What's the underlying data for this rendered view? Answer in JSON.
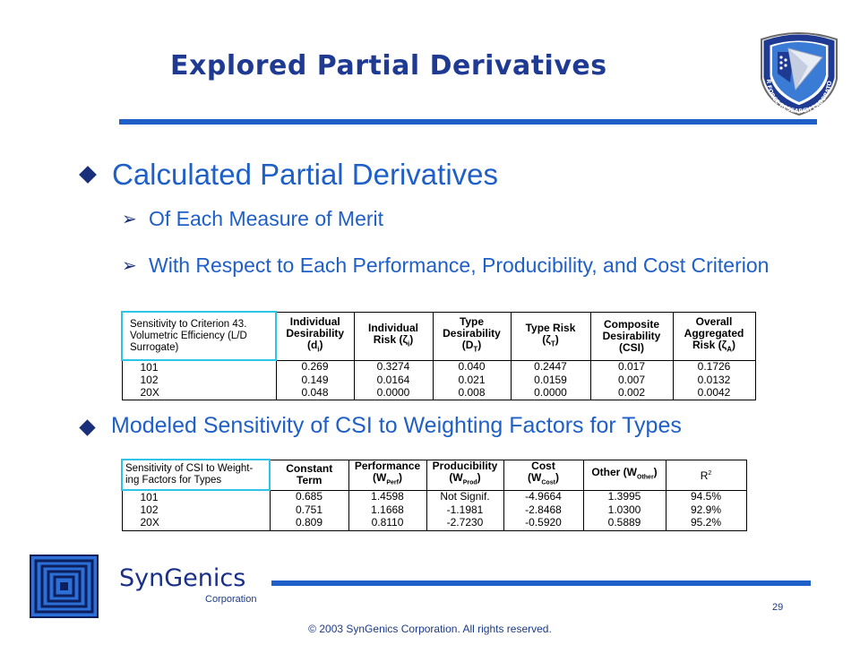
{
  "slide": {
    "title": "Explored Partial Derivatives",
    "bullet1": "Calculated Partial Derivatives",
    "sub1": "Of Each Measure of Merit",
    "sub2": "With Respect to Each Performance, Producibility, and Cost Criterion",
    "bullet2": "Modeled Sensitivity of CSI to Weighting Factors for Types"
  },
  "table1": {
    "corner": [
      "Sensitivity to Criterion    43.",
      "Volumetric Efficiency (L/D",
      "Surrogate)"
    ],
    "headers": [
      {
        "line1": "Individual",
        "line2": "Desirability",
        "line3_main": "(d",
        "line3_sub": "i",
        "line3_end": ")"
      },
      {
        "line1": "Individual",
        "line2_main": "Risk (ζ",
        "line2_sub": "i",
        "line2_end": ")"
      },
      {
        "line1": "Type",
        "line2": "Desirability",
        "line3_main": "(D",
        "line3_sub": "T",
        "line3_end": ")"
      },
      {
        "line1": "Type Risk",
        "line2_main": "(ζ",
        "line2_sub": "T",
        "line2_end": ")"
      },
      {
        "line1": "Composite",
        "line2": "Desirability",
        "line3": "(CSI)"
      },
      {
        "line1": "Overall",
        "line2": "Aggregated",
        "line3_main": "Risk (ζ",
        "line3_sub": "A",
        "line3_end": ")"
      }
    ],
    "rows": [
      {
        "label": "101",
        "values": [
          "0.269",
          "0.3274",
          "0.040",
          "0.2447",
          "0.017",
          "0.1726"
        ]
      },
      {
        "label": "102",
        "values": [
          "0.149",
          "0.0164",
          "0.021",
          "0.0159",
          "0.007",
          "0.0132"
        ]
      },
      {
        "label": "20X",
        "values": [
          "0.048",
          "0.0000",
          "0.008",
          "0.0000",
          "0.002",
          "0.0042"
        ]
      }
    ]
  },
  "table2": {
    "corner": [
      "Sensitivity of CSI to Weight-",
      "ing Factors for Types"
    ],
    "headers": [
      {
        "line1": "Constant",
        "line2": "Term"
      },
      {
        "line1": "Performance",
        "line2_main": "(W",
        "line2_sub": "Perf",
        "line2_end": ")"
      },
      {
        "line1": "Producibility",
        "line2_main": "(W",
        "line2_sub": "Prod",
        "line2_end": ")"
      },
      {
        "line1": "Cost",
        "line2_main": "(W",
        "line2_sub": "Cost",
        "line2_end": ")"
      },
      {
        "line1_main": "Other (W",
        "line1_sub": "Other",
        "line1_end": ")"
      },
      {
        "line1_main": "R",
        "line1_sup": "2"
      }
    ],
    "rows": [
      {
        "label": "101",
        "values": [
          "0.685",
          "1.4598",
          "Not Signif.",
          "-4.9664",
          "1.3995",
          "94.5%"
        ]
      },
      {
        "label": "102",
        "values": [
          "0.751",
          "1.1668",
          "-1.1981",
          "-2.8468",
          "1.0300",
          "92.9%"
        ]
      },
      {
        "label": "20X",
        "values": [
          "0.809",
          "0.8110",
          "-2.7230",
          "-0.5920",
          "0.5889",
          "95.2%"
        ]
      }
    ]
  },
  "footer": {
    "company": "SynGenics",
    "corporation": "Corporation",
    "page_number": "29",
    "copyright": "© 2003 SynGenics Corporation. All rights reserved.",
    "emblem_ring_text": "AIR FORCE RESEARCH LABORATORY"
  },
  "colors": {
    "accent_blue": "#1f5fc8",
    "title_navy": "#1f3a93",
    "corner_border": "#2ec4e8"
  }
}
